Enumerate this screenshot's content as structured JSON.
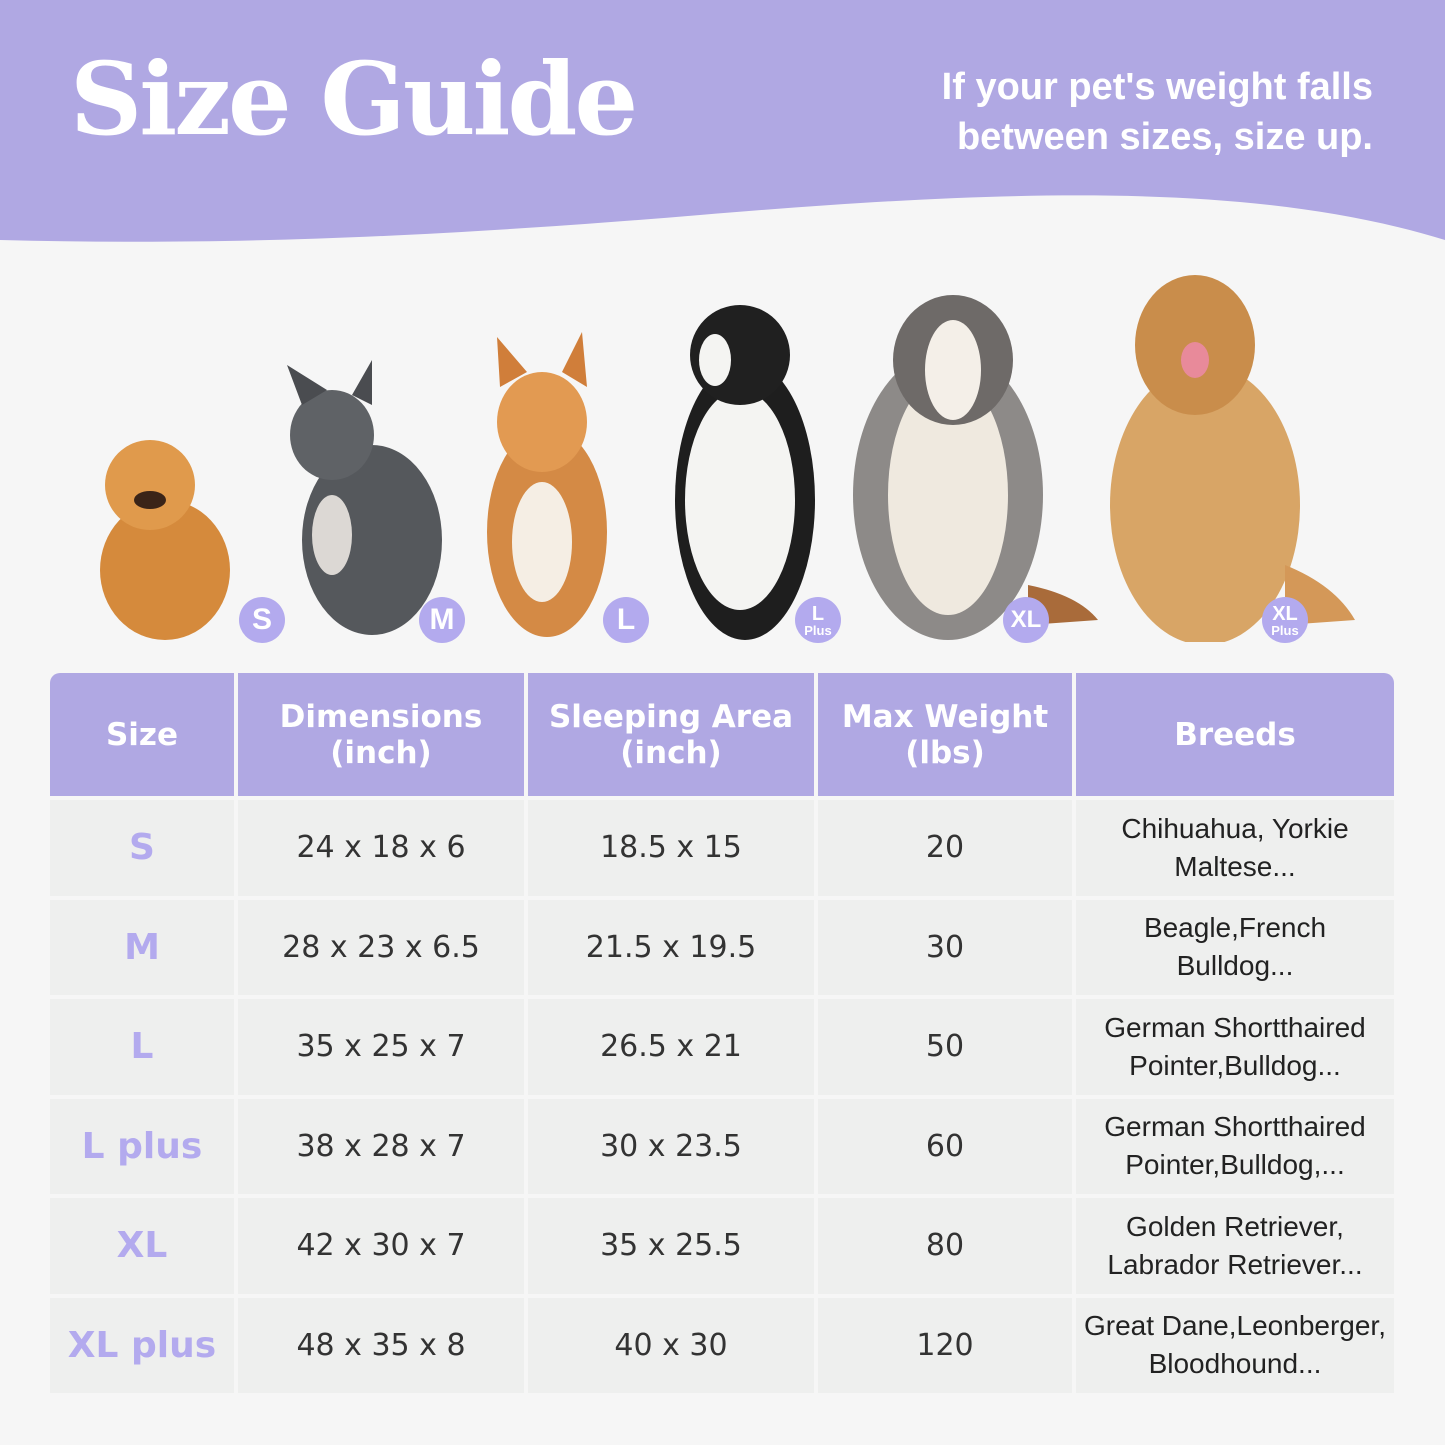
{
  "header": {
    "title": "Size Guide",
    "tip_line1": "If your pet's weight falls",
    "tip_line2": "between sizes, size up."
  },
  "colors": {
    "accent": "#b0a8e3",
    "badge": "#b3aaee",
    "cell": "#eeefee",
    "background": "#f6f6f6"
  },
  "badges": [
    {
      "main": "S",
      "sub": ""
    },
    {
      "main": "M",
      "sub": ""
    },
    {
      "main": "L",
      "sub": ""
    },
    {
      "main": "L",
      "sub": "Plus"
    },
    {
      "main": "XL",
      "sub": ""
    },
    {
      "main": "XL",
      "sub": "Plus"
    }
  ],
  "dogs": [
    "pomeranian",
    "french-bulldog",
    "shiba-inu",
    "border-collie",
    "australian-shepherd",
    "golden-retriever"
  ],
  "table": {
    "headers": [
      {
        "l1": "Size",
        "l2": ""
      },
      {
        "l1": "Dimensions",
        "l2": "(inch)"
      },
      {
        "l1": "Sleeping Area",
        "l2": "(inch)"
      },
      {
        "l1": "Max Weight",
        "l2": "(lbs)"
      },
      {
        "l1": "Breeds",
        "l2": ""
      }
    ],
    "rows": [
      {
        "size": "S",
        "dimensions": "24 x 18 x 6",
        "sleeping": "18.5 x 15",
        "weight": "20",
        "breeds1": "Chihuahua, Yorkie",
        "breeds2": "Maltese..."
      },
      {
        "size": "M",
        "dimensions": "28 x 23 x 6.5",
        "sleeping": "21.5 x 19.5",
        "weight": "30",
        "breeds1": "Beagle,French",
        "breeds2": "Bulldog..."
      },
      {
        "size": "L",
        "dimensions": "35 x 25 x 7",
        "sleeping": "26.5 x 21",
        "weight": "50",
        "breeds1": "German Shortthaired",
        "breeds2": "Pointer,Bulldog..."
      },
      {
        "size": "L plus",
        "dimensions": "38 x 28 x 7",
        "sleeping": "30 x 23.5",
        "weight": "60",
        "breeds1": "German Shortthaired",
        "breeds2": "Pointer,Bulldog,..."
      },
      {
        "size": "XL",
        "dimensions": "42 x 30 x 7",
        "sleeping": "35 x 25.5",
        "weight": "80",
        "breeds1": "Golden Retriever,",
        "breeds2": "Labrador Retriever..."
      },
      {
        "size": "XL plus",
        "dimensions": "48 x 35 x 8",
        "sleeping": "40 x 30",
        "weight": "120",
        "breeds1": "Great Dane,Leonberger,",
        "breeds2": "Bloodhound..."
      }
    ]
  }
}
